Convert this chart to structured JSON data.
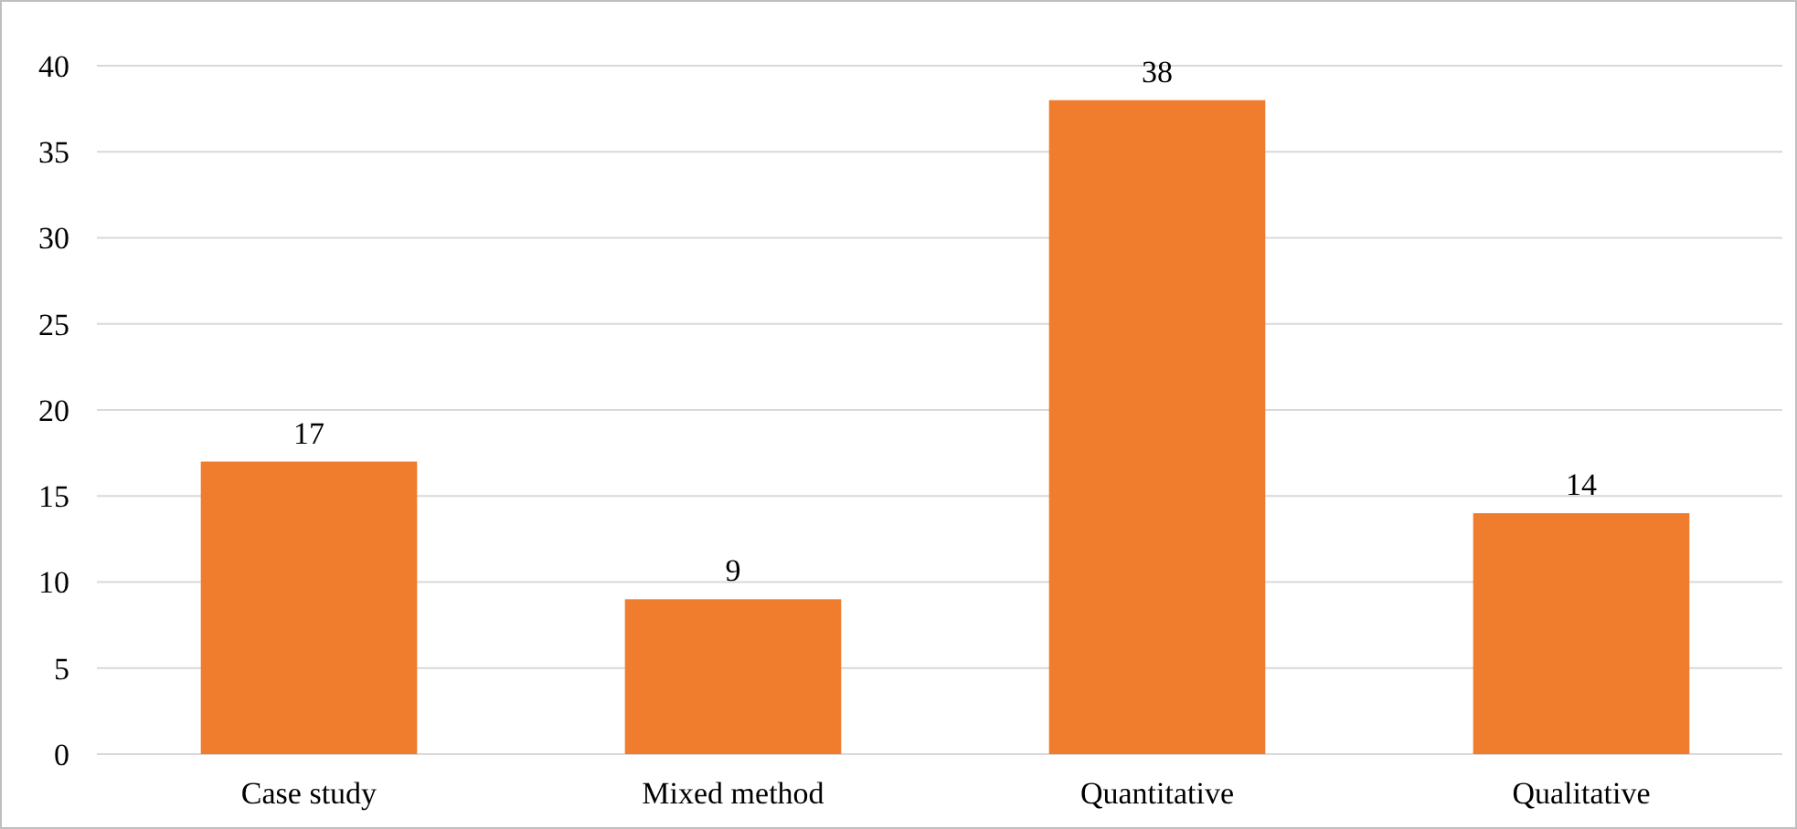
{
  "chart_data": {
    "type": "bar",
    "categories": [
      "Case study",
      "Mixed method",
      "Quantitative",
      "Qualitative"
    ],
    "values": [
      17,
      9,
      38,
      14
    ],
    "color": "#f07c2e",
    "ylim": [
      0,
      40
    ],
    "yticks": [
      0,
      5,
      10,
      15,
      20,
      25,
      30,
      35,
      40
    ],
    "grid": "y",
    "data_labels": true
  }
}
